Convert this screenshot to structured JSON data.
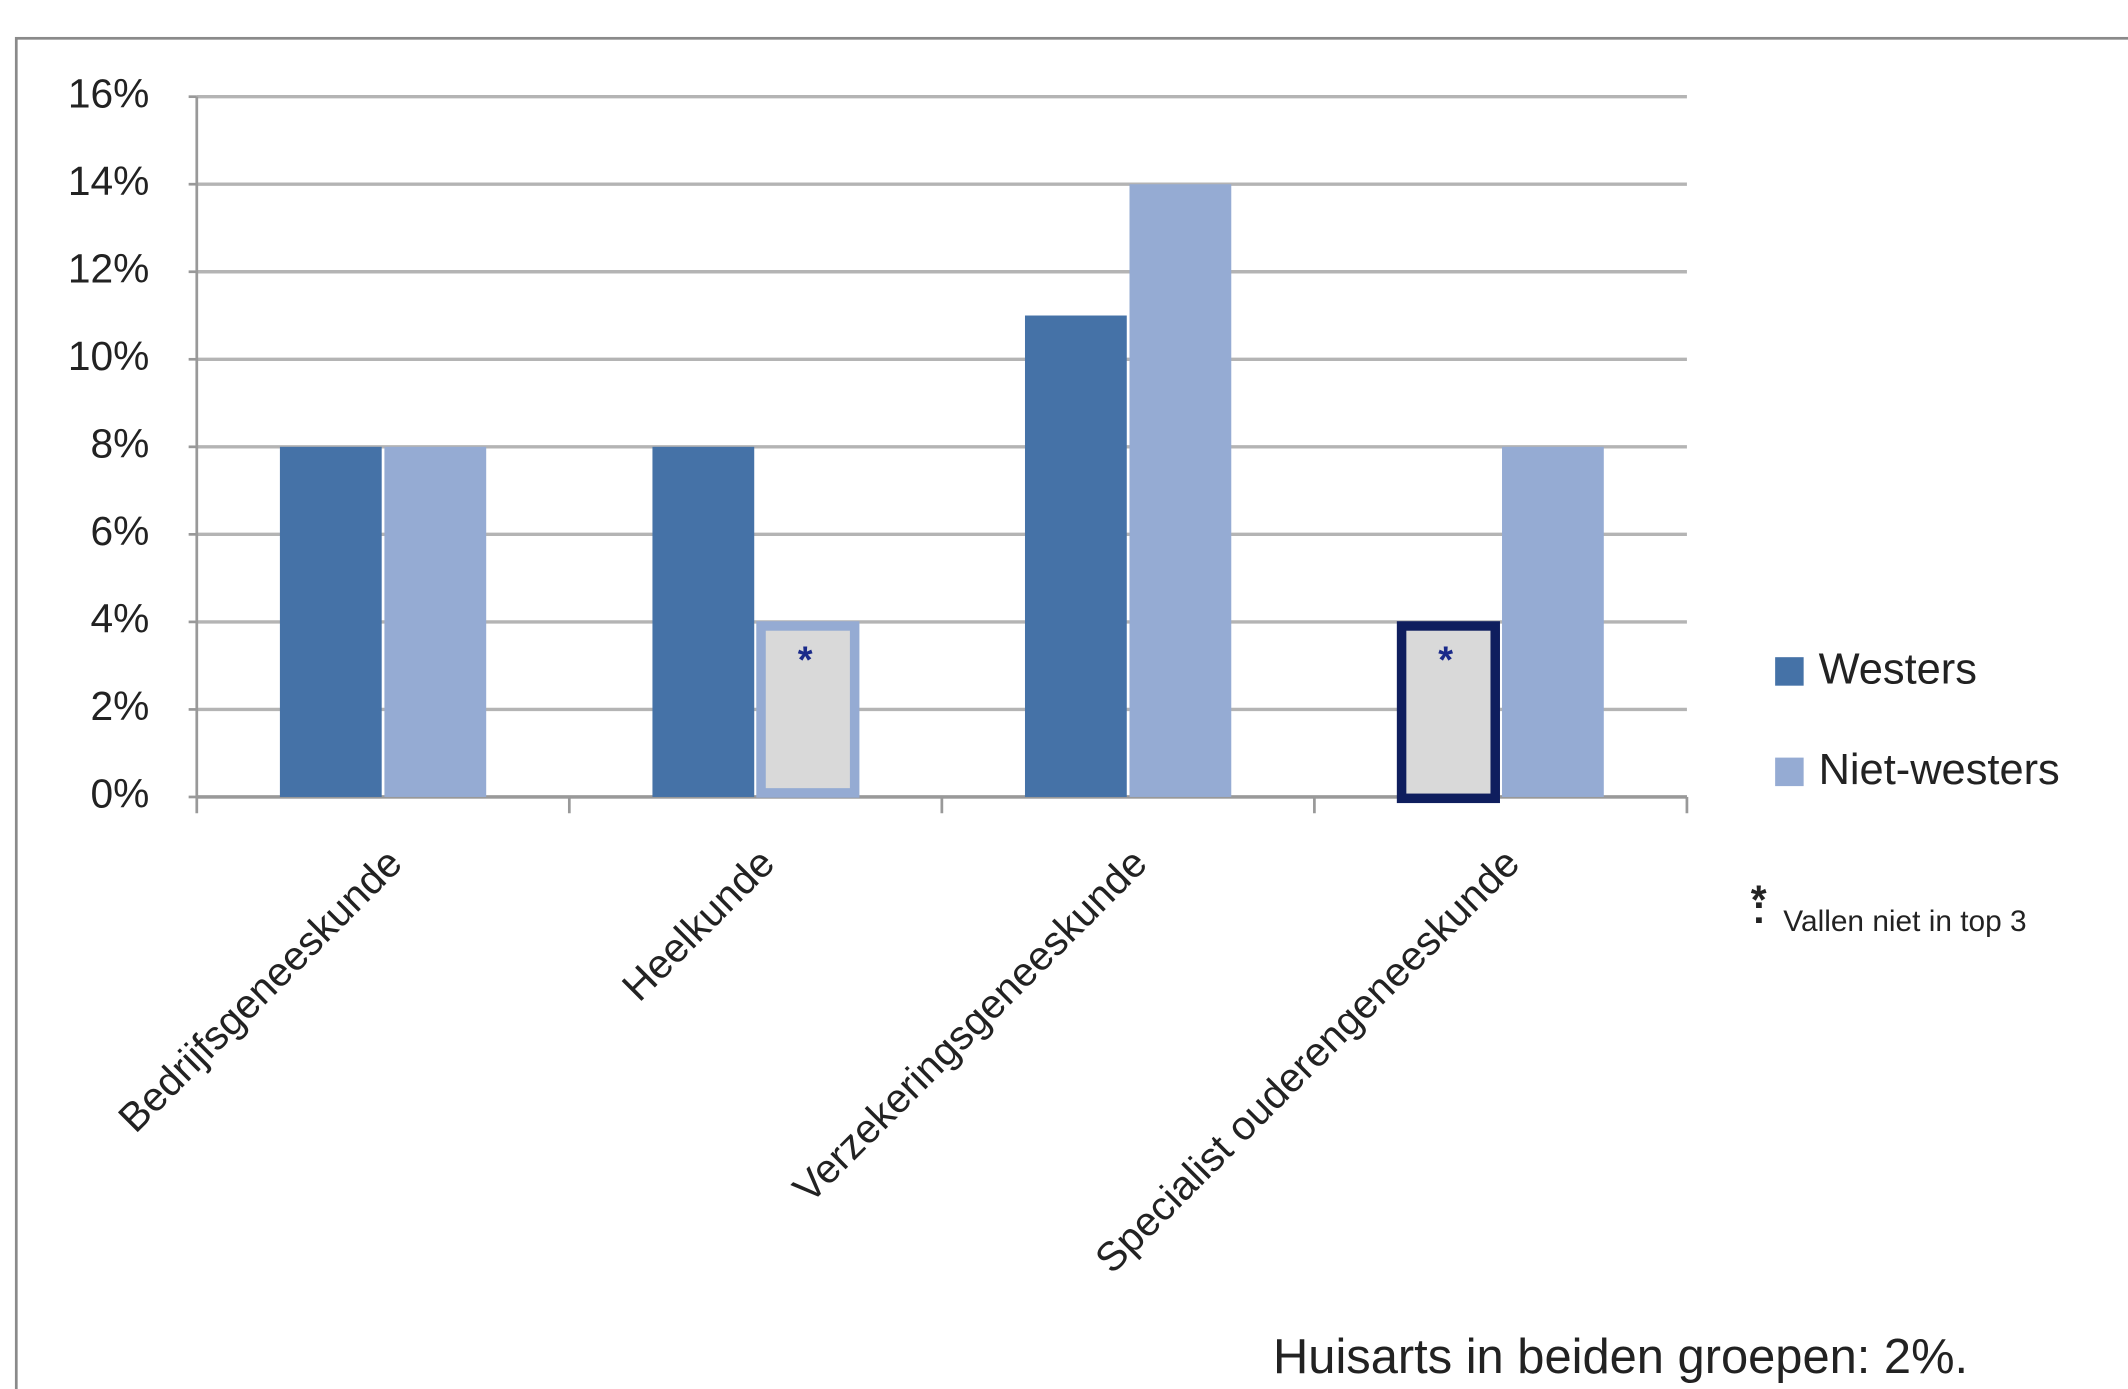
{
  "chart_data": {
    "type": "bar",
    "categories": [
      "Bedrijfsgeneeskunde",
      "Heelkunde",
      "Verzekeringsgeneeskunde",
      "Specialist ouderengeneeskunde"
    ],
    "series": [
      {
        "name": "Westers",
        "color": "#4572a7",
        "border_color": "#0f1e5e",
        "values": [
          8,
          8,
          11,
          4
        ],
        "marked": [
          false,
          false,
          false,
          true
        ]
      },
      {
        "name": "Niet-westers",
        "color": "#95abd3",
        "border_color": "#95abd3",
        "values": [
          8,
          4,
          14,
          8
        ],
        "marked": [
          false,
          true,
          false,
          false
        ]
      }
    ],
    "marker": "*",
    "marked_fill": "#d9d9d9",
    "footnote": "Vallen niet in top 3",
    "note": "Huisarts in beiden groepen: 2%.",
    "ylim": [
      0,
      16
    ],
    "yticks": [
      {
        "value": 0,
        "label": "0%"
      },
      {
        "value": 2,
        "label": "2%"
      },
      {
        "value": 4,
        "label": "4%"
      },
      {
        "value": 6,
        "label": "6%"
      },
      {
        "value": 8,
        "label": "8%"
      },
      {
        "value": 10,
        "label": "10%"
      },
      {
        "value": 12,
        "label": "12%"
      },
      {
        "value": 14,
        "label": "14%"
      },
      {
        "value": 16,
        "label": "16%"
      }
    ],
    "grid": true,
    "legend": "right"
  }
}
